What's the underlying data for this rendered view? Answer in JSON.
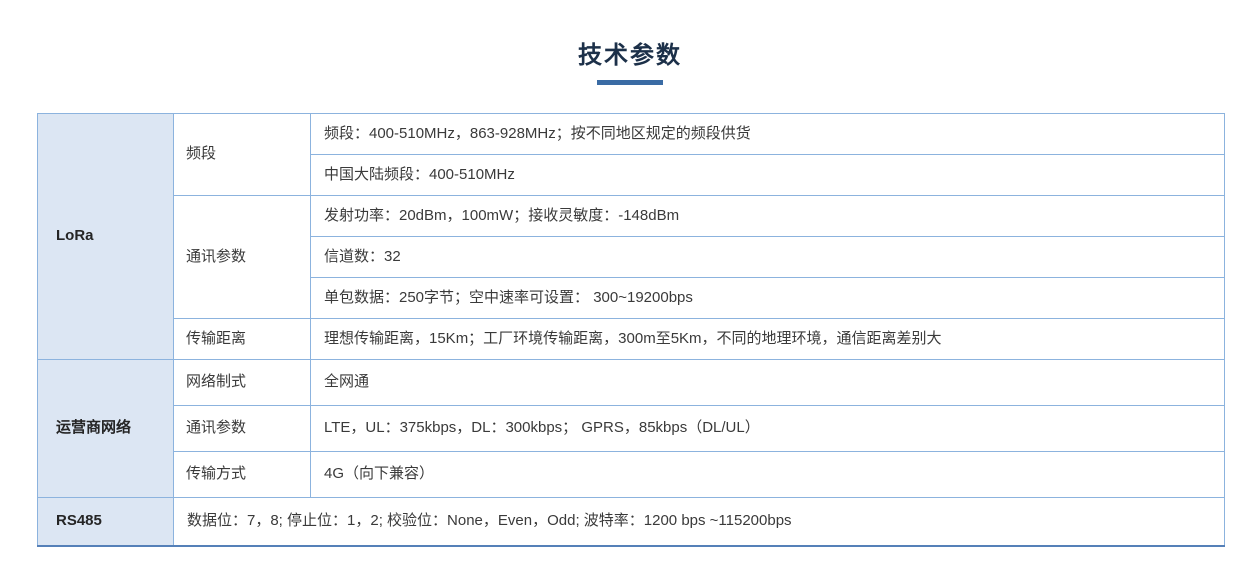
{
  "page": {
    "title": "技术参数",
    "accent_color": "#3a6ba4",
    "category_bg": "#dce6f3",
    "border_color": "#8cb3de"
  },
  "table": {
    "sections": [
      {
        "category": "LoRa",
        "groups": [
          {
            "label": "频段",
            "rows": [
              "频段：400-510MHz，863-928MHz；按不同地区规定的频段供货",
              "中国大陆频段：400-510MHz"
            ]
          },
          {
            "label": "通讯参数",
            "rows": [
              "发射功率：20dBm，100mW；接收灵敏度：-148dBm",
              "信道数：32",
              "单包数据：250字节；空中速率可设置： 300~19200bps"
            ]
          },
          {
            "label": "传输距离",
            "rows": [
              "理想传输距离，15Km；工厂环境传输距离，300m至5Km，不同的地理环境，通信距离差别大"
            ]
          }
        ]
      },
      {
        "category": "运营商网络",
        "groups": [
          {
            "label": "网络制式",
            "rows": [
              "全网通"
            ]
          },
          {
            "label": "通讯参数",
            "rows": [
              "LTE，UL：375kbps，DL：300kbps； GPRS，85kbps（DL/UL）"
            ]
          },
          {
            "label": "传输方式",
            "rows": [
              "4G（向下兼容）"
            ]
          }
        ]
      },
      {
        "category": "RS485",
        "full_row": "数据位：7，8; 停止位：1，2; 校验位：None，Even，Odd; 波特率：1200 bps ~115200bps"
      }
    ]
  }
}
